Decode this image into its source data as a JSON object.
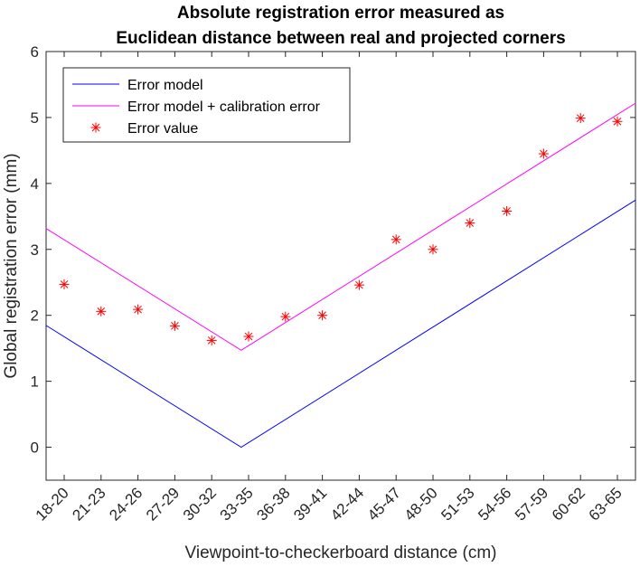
{
  "chart_data": {
    "type": "line",
    "title_lines": [
      "Absolute registration error measured as",
      "Euclidean distance between real and projected corners"
    ],
    "xlabel": "Viewpoint-to-checkerboard distance (cm)",
    "ylabel": "Global registration error (mm)",
    "categories": [
      "18-20",
      "21-23",
      "24-26",
      "27-29",
      "30-32",
      "33-35",
      "36-38",
      "39-41",
      "42-44",
      "45-47",
      "48-50",
      "51-53",
      "54-56",
      "57-59",
      "60-62",
      "63-65"
    ],
    "yticks": [
      0,
      1,
      2,
      3,
      4,
      5,
      6
    ],
    "ylim": [
      -0.5,
      6
    ],
    "grid": false,
    "legend_position": "top-left",
    "series": [
      {
        "name": "Error model",
        "style": "line",
        "color": "#0000ff",
        "points": [
          {
            "x": 0.5,
            "y": 1.85
          },
          {
            "x": 5.8,
            "y": 0.0
          },
          {
            "x": 16.5,
            "y": 3.75
          }
        ]
      },
      {
        "name": "Error model + calibration error",
        "style": "line",
        "color": "#ff00ff",
        "points": [
          {
            "x": 0.5,
            "y": 3.32
          },
          {
            "x": 5.8,
            "y": 1.47
          },
          {
            "x": 16.5,
            "y": 5.22
          }
        ]
      },
      {
        "name": "Error value",
        "style": "marker",
        "marker": "asterisk",
        "color": "#ff0000",
        "values": [
          2.47,
          2.06,
          2.09,
          1.84,
          1.62,
          1.68,
          1.98,
          2.0,
          2.46,
          3.15,
          3.0,
          3.4,
          3.58,
          4.45,
          4.99,
          4.94
        ]
      }
    ]
  }
}
